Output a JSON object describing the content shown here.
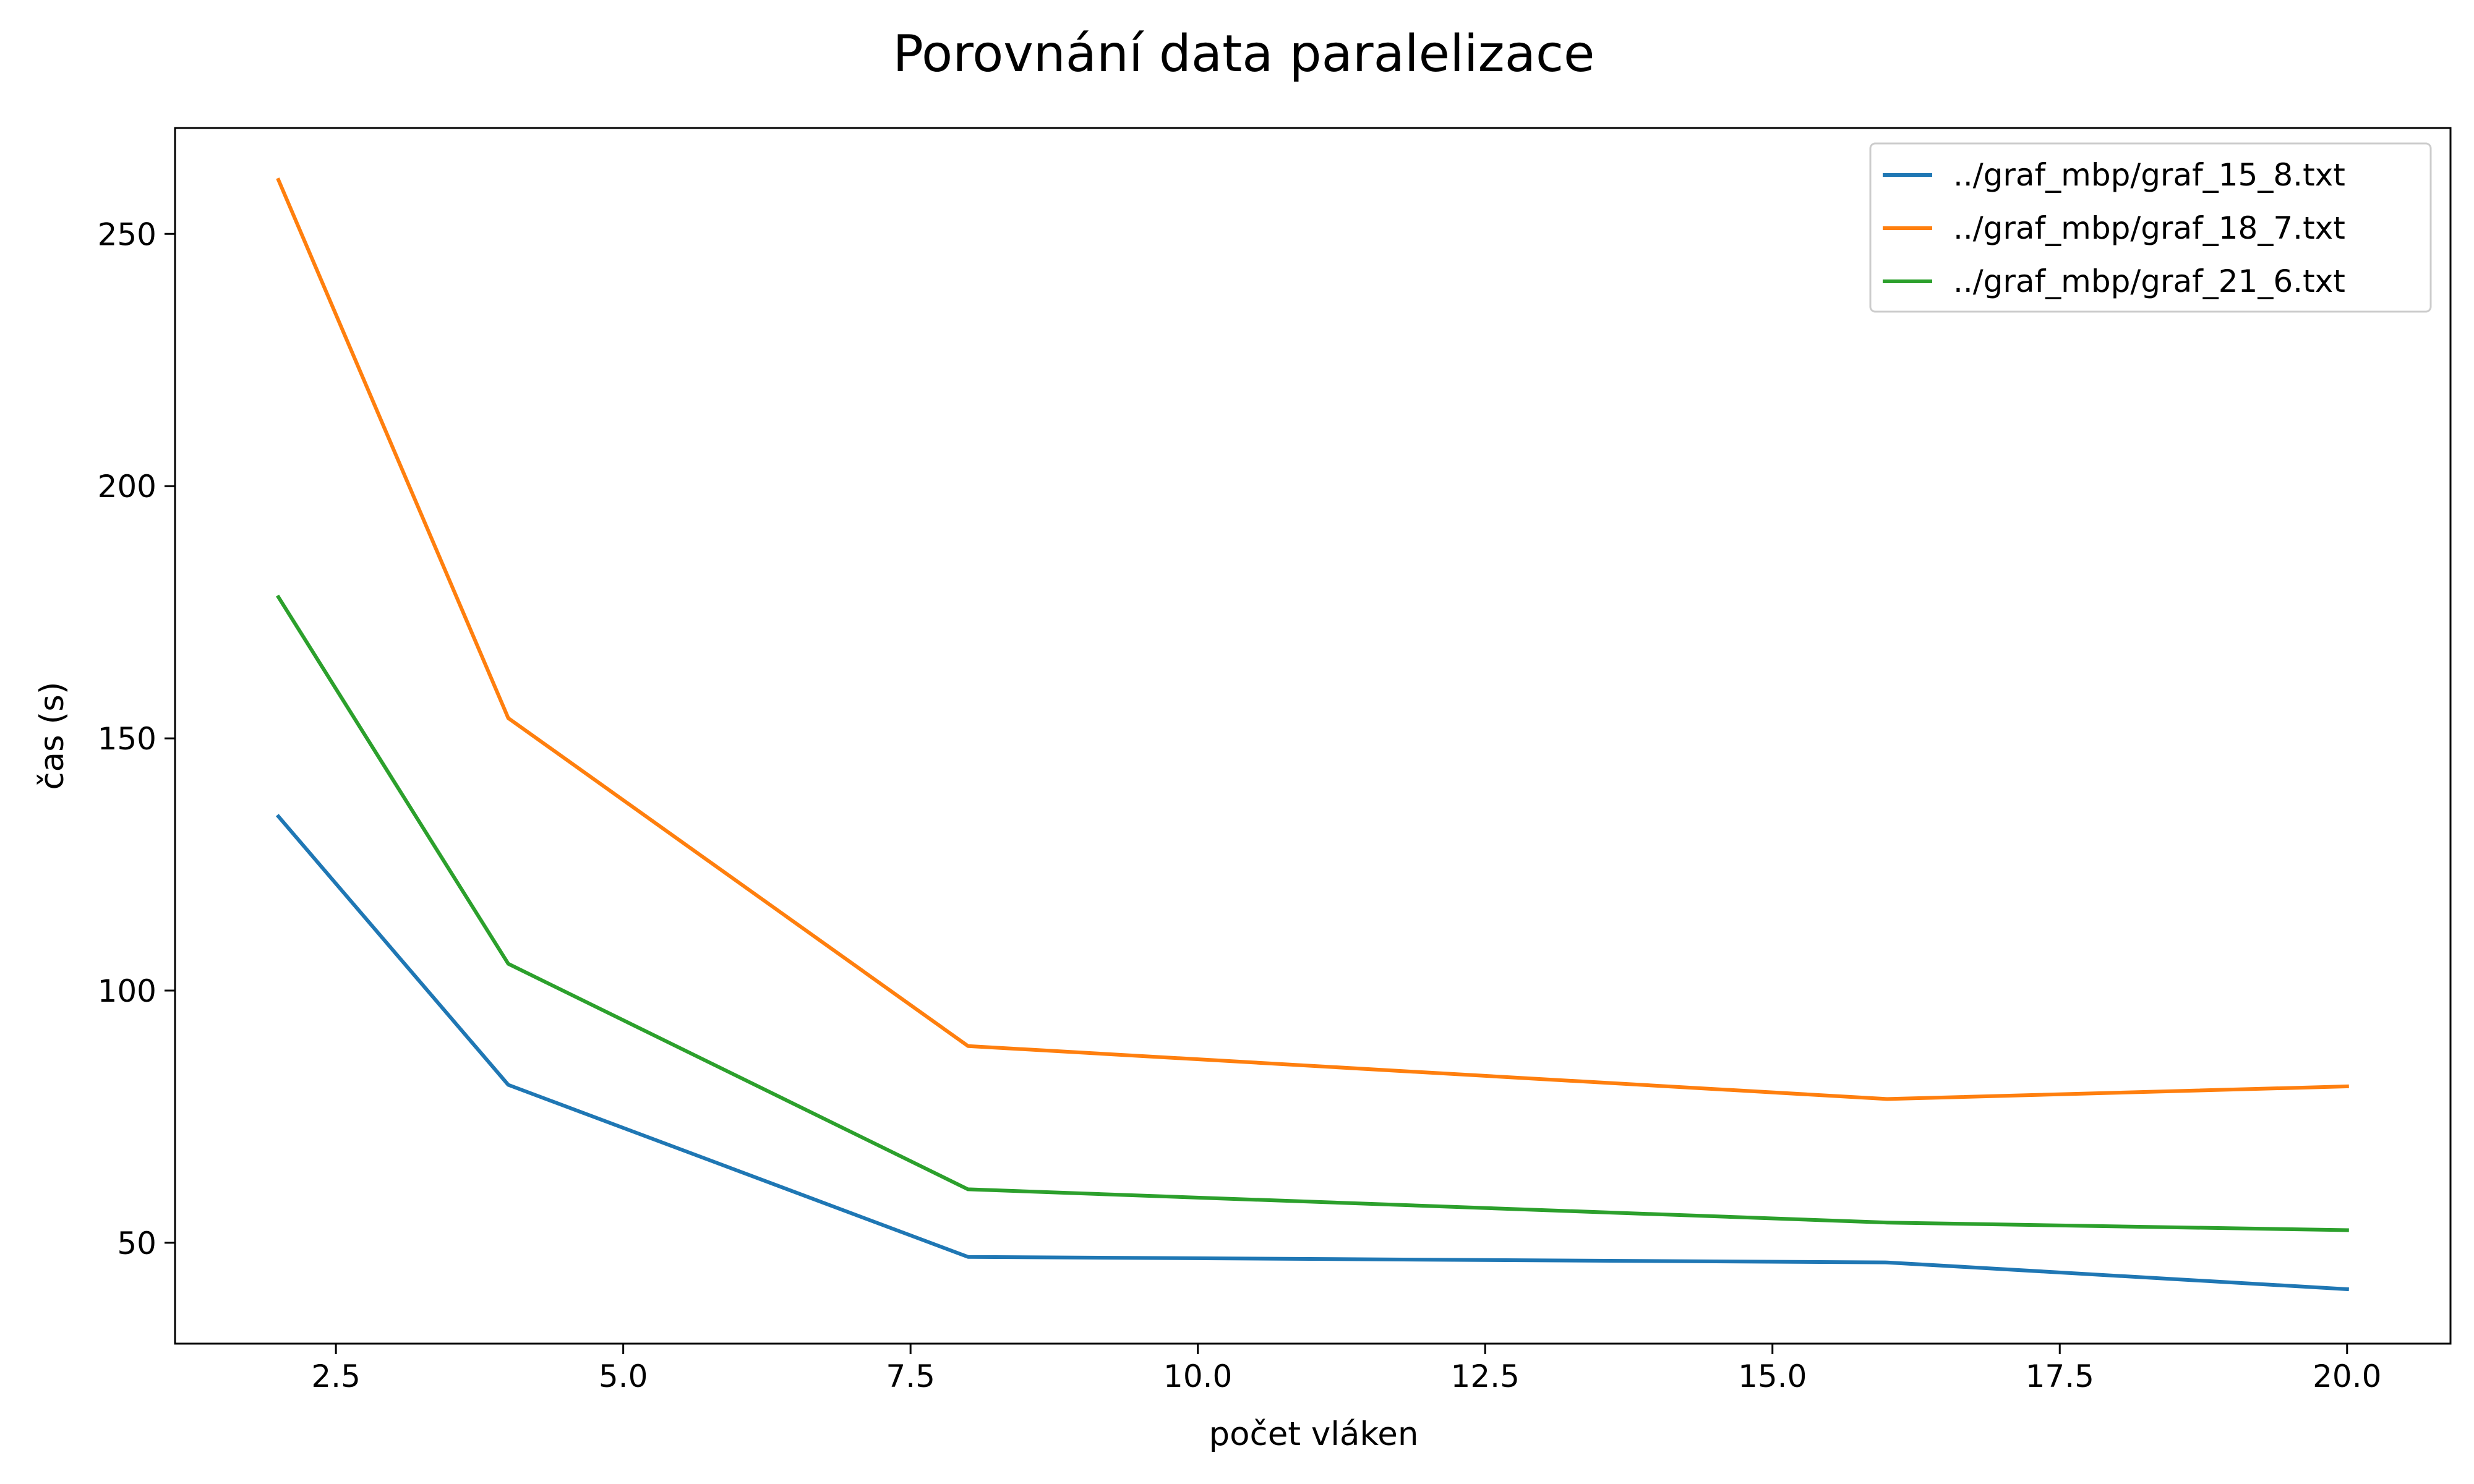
{
  "chart_data": {
    "type": "line",
    "title": "Porovnání data paralelizace",
    "xlabel": "počet vláken",
    "ylabel": "čas (s)",
    "xlim": [
      1.1,
      20.9
    ],
    "ylim": [
      30,
      271
    ],
    "xticks": [
      2.5,
      5.0,
      7.5,
      10.0,
      12.5,
      15.0,
      17.5,
      20.0
    ],
    "xtick_labels": [
      "2.5",
      "5.0",
      "7.5",
      "10.0",
      "12.5",
      "15.0",
      "17.5",
      "20.0"
    ],
    "yticks": [
      50,
      100,
      150,
      200,
      250
    ],
    "ytick_labels": [
      "50",
      "100",
      "150",
      "200",
      "250"
    ],
    "grid": false,
    "legend_position": "top-right",
    "x": [
      2,
      4,
      8,
      16,
      20
    ],
    "series": [
      {
        "name": "../graf_mbp/graf_15_8.txt",
        "color": "#1f77b4",
        "values": [
          134.5,
          81.3,
          47.2,
          46.1,
          40.8
        ]
      },
      {
        "name": "../graf_mbp/graf_18_7.txt",
        "color": "#ff7f0e",
        "values": [
          260.7,
          154.0,
          89.0,
          78.5,
          81.0
        ]
      },
      {
        "name": "../graf_mbp/graf_21_6.txt",
        "color": "#2ca02c",
        "values": [
          178.0,
          105.3,
          60.6,
          54.0,
          52.5
        ]
      }
    ]
  }
}
